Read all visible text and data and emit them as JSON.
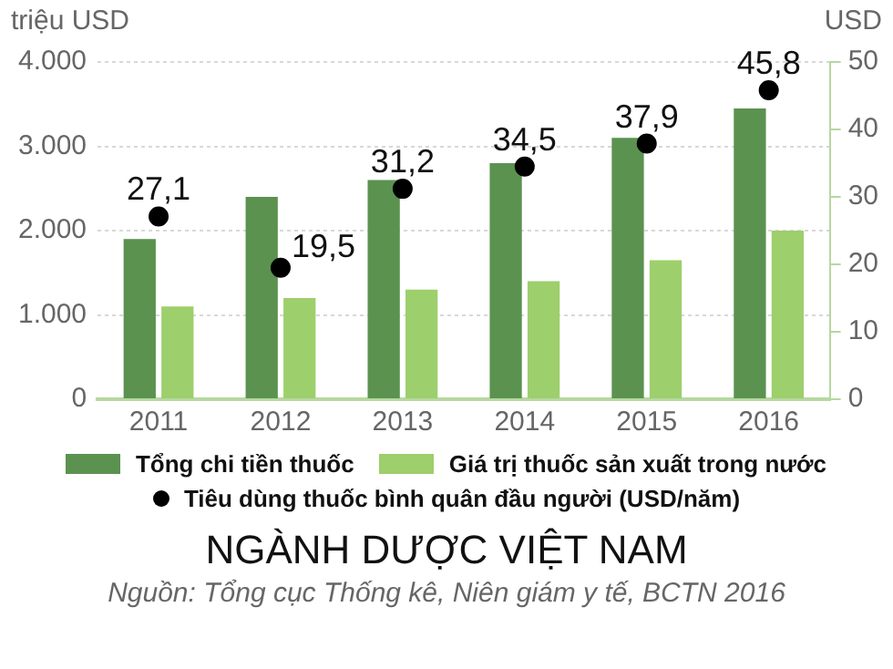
{
  "chart_data": {
    "type": "bar",
    "title": "NGÀNH DƯỢC VIỆT NAM",
    "ylabel": "triệu USD",
    "y2label": "USD",
    "categories": [
      "2011",
      "2012",
      "2013",
      "2014",
      "2015",
      "2016"
    ],
    "series": [
      {
        "name": "Tổng chi tiền thuốc",
        "color": "#5b9250",
        "values": [
          1900,
          2400,
          2600,
          2800,
          3100,
          3450
        ]
      },
      {
        "name": "Giá trị thuốc sản xuất trong nước",
        "color": "#9dcf6c",
        "values": [
          1100,
          1200,
          1300,
          1400,
          1650,
          2000
        ]
      },
      {
        "name": "Tiêu dùng thuốc bình quân đầu người (USD/năm)",
        "type": "scatter",
        "axis": "y2",
        "color": "#000000",
        "marker": "circle",
        "values": [
          27.1,
          19.5,
          31.2,
          34.5,
          37.9,
          45.8
        ],
        "value_labels": [
          "27,1",
          "19,5",
          "31,2",
          "34,5",
          "37,9",
          "45,8"
        ]
      }
    ],
    "ylim": [
      0,
      4000
    ],
    "yticks": [
      0,
      {
        "value": 1000,
        "label": "1.000"
      },
      {
        "value": 2000,
        "label": "2.000"
      },
      {
        "value": 3000,
        "label": "3.000"
      },
      {
        "value": 4000,
        "label": "4.000"
      }
    ],
    "y2lim": [
      0,
      50
    ],
    "y2ticks": [
      0,
      10,
      20,
      30,
      40,
      50
    ],
    "grid": "y",
    "legend": "bottom",
    "annotations": [
      "Nguồn: Tổng cục Thống kê, Niên giám y tế, BCTN 2016"
    ]
  }
}
